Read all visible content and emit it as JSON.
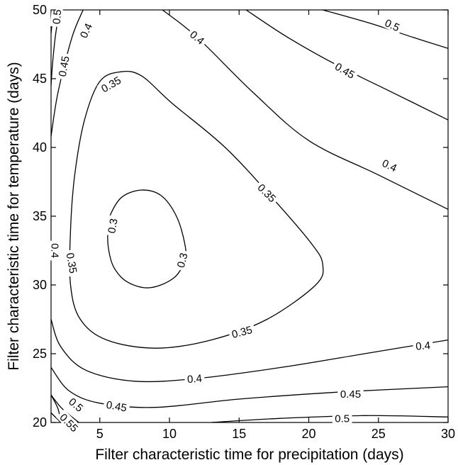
{
  "chart_data": {
    "type": "contour",
    "xlabel": "Filter characteristic time for precipitation (days)",
    "ylabel": "Filter characteristic time for temperature (days)",
    "xlim": [
      1.5,
      30
    ],
    "ylim": [
      20,
      50
    ],
    "xticks": [
      5,
      10,
      15,
      20,
      25,
      30
    ],
    "yticks": [
      20,
      25,
      30,
      35,
      40,
      45,
      50
    ],
    "grid": false,
    "legend": "none",
    "line_color": "#000000",
    "contours": [
      {
        "level": 0.3,
        "closed": true,
        "points": [
          [
            5.8,
            35.2
          ],
          [
            6.6,
            36.4
          ],
          [
            8.0,
            36.9
          ],
          [
            9.4,
            36.5
          ],
          [
            10.5,
            35.0
          ],
          [
            11.1,
            33.0
          ],
          [
            11.1,
            31.8
          ],
          [
            10.3,
            30.5
          ],
          [
            8.6,
            29.8
          ],
          [
            7.0,
            30.2
          ],
          [
            6.0,
            31.3
          ],
          [
            5.6,
            32.8
          ],
          [
            5.6,
            34.2
          ]
        ]
      },
      {
        "level": 0.35,
        "closed": true,
        "points": [
          [
            6.5,
            45.5
          ],
          [
            5.0,
            44.8
          ],
          [
            3.9,
            42.0
          ],
          [
            3.2,
            38.0
          ],
          [
            2.9,
            34.0
          ],
          [
            2.9,
            30.0
          ],
          [
            3.6,
            27.5
          ],
          [
            5.5,
            26.0
          ],
          [
            9.0,
            25.4
          ],
          [
            13.0,
            26.0
          ],
          [
            17.0,
            27.5
          ],
          [
            20.5,
            30.0
          ],
          [
            21.0,
            31.5
          ],
          [
            20.2,
            33.0
          ],
          [
            17.5,
            36.2
          ],
          [
            14.0,
            40.0
          ],
          [
            10.2,
            43.2
          ],
          [
            8.0,
            45.2
          ]
        ]
      },
      {
        "level": 0.4,
        "closed": false,
        "points": [
          [
            2.2,
            20.0
          ],
          [
            2.0,
            21.0
          ],
          [
            1.5,
            22.0
          ]
        ]
      },
      {
        "level": 0.4,
        "closed": false,
        "points": [
          [
            1.5,
            40.8
          ],
          [
            2.0,
            44.0
          ],
          [
            3.0,
            48.0
          ],
          [
            3.8,
            50.0
          ]
        ]
      },
      {
        "level": 0.4,
        "closed": false,
        "points": [
          [
            9.5,
            50.0
          ],
          [
            12.0,
            48.0
          ],
          [
            16.0,
            44.0
          ],
          [
            20.0,
            40.5
          ],
          [
            25.0,
            38.0
          ],
          [
            30.0,
            35.5
          ]
        ]
      },
      {
        "level": 0.4,
        "closed": false,
        "points": [
          [
            1.5,
            27.5
          ],
          [
            2.2,
            25.5
          ],
          [
            4.0,
            23.8
          ],
          [
            7.5,
            23.0
          ],
          [
            12.0,
            23.2
          ],
          [
            18.0,
            24.0
          ],
          [
            24.0,
            25.0
          ],
          [
            30.0,
            26.0
          ]
        ]
      },
      {
        "level": 0.45,
        "closed": false,
        "points": [
          [
            1.5,
            24.0
          ],
          [
            2.8,
            22.3
          ],
          [
            5.0,
            21.4
          ],
          [
            9.0,
            21.1
          ],
          [
            15.0,
            21.7
          ],
          [
            22.0,
            22.2
          ],
          [
            30.0,
            22.6
          ]
        ]
      },
      {
        "level": 0.45,
        "closed": false,
        "points": [
          [
            2.1,
            50.0
          ],
          [
            1.8,
            48.0
          ],
          [
            1.6,
            46.0
          ],
          [
            1.5,
            44.5
          ]
        ]
      },
      {
        "level": 0.45,
        "closed": false,
        "points": [
          [
            15.5,
            50.0
          ],
          [
            18.5,
            48.0
          ],
          [
            22.0,
            46.0
          ],
          [
            26.0,
            44.0
          ],
          [
            30.0,
            42.0
          ]
        ]
      },
      {
        "level": 0.5,
        "closed": false,
        "points": [
          [
            1.5,
            22.0
          ],
          [
            2.3,
            21.0
          ],
          [
            3.5,
            20.0
          ]
        ]
      },
      {
        "level": 0.5,
        "closed": false,
        "points": [
          [
            1.5,
            48.3
          ],
          [
            1.6,
            49.2
          ],
          [
            1.7,
            50.0
          ]
        ]
      },
      {
        "level": 0.5,
        "closed": false,
        "points": [
          [
            13.0,
            20.0
          ],
          [
            18.0,
            20.3
          ],
          [
            24.0,
            20.5
          ],
          [
            30.0,
            20.4
          ]
        ]
      },
      {
        "level": 0.5,
        "closed": false,
        "points": [
          [
            21.0,
            50.0
          ],
          [
            24.5,
            49.0
          ],
          [
            27.5,
            48.0
          ],
          [
            30.0,
            47.2
          ]
        ]
      },
      {
        "level": 0.55,
        "closed": false,
        "points": [
          [
            1.5,
            20.7
          ],
          [
            1.9,
            20.3
          ],
          [
            2.2,
            20.0
          ]
        ]
      }
    ],
    "contour_labels": [
      {
        "text": "0.5",
        "x": 1.9,
        "y": 49.5,
        "angle": -85
      },
      {
        "text": "0.4",
        "x": 4.0,
        "y": 48.5,
        "angle": -65
      },
      {
        "text": "0.45",
        "x": 2.4,
        "y": 45.9,
        "angle": -80
      },
      {
        "text": "0.35",
        "x": 5.8,
        "y": 44.6,
        "angle": -30
      },
      {
        "text": "0.4",
        "x": 12.0,
        "y": 48.0,
        "angle": 40
      },
      {
        "text": "0.5",
        "x": 26.0,
        "y": 48.9,
        "angle": 25
      },
      {
        "text": "0.45",
        "x": 22.6,
        "y": 45.6,
        "angle": 30
      },
      {
        "text": "0.4",
        "x": 25.8,
        "y": 38.7,
        "angle": 25
      },
      {
        "text": "0.35",
        "x": 17.0,
        "y": 36.7,
        "angle": 45
      },
      {
        "text": "0.3",
        "x": 5.9,
        "y": 34.3,
        "angle": -80
      },
      {
        "text": "0.3",
        "x": 10.9,
        "y": 31.8,
        "angle": -75
      },
      {
        "text": "0.4",
        "x": 1.8,
        "y": 32.5,
        "angle": 90
      },
      {
        "text": "0.35",
        "x": 3.0,
        "y": 31.6,
        "angle": 80
      },
      {
        "text": "0.35",
        "x": 15.2,
        "y": 26.6,
        "angle": -15
      },
      {
        "text": "0.4",
        "x": 11.8,
        "y": 23.2,
        "angle": -5
      },
      {
        "text": "0.4",
        "x": 28.2,
        "y": 25.6,
        "angle": -5
      },
      {
        "text": "0.45",
        "x": 23.0,
        "y": 22.1,
        "angle": 0
      },
      {
        "text": "0.5",
        "x": 3.3,
        "y": 21.3,
        "angle": 40
      },
      {
        "text": "0.45",
        "x": 6.2,
        "y": 21.2,
        "angle": 10
      },
      {
        "text": "0.55",
        "x": 2.8,
        "y": 20.0,
        "angle": 45
      },
      {
        "text": "0.5",
        "x": 22.4,
        "y": 20.3,
        "angle": 0
      }
    ]
  }
}
